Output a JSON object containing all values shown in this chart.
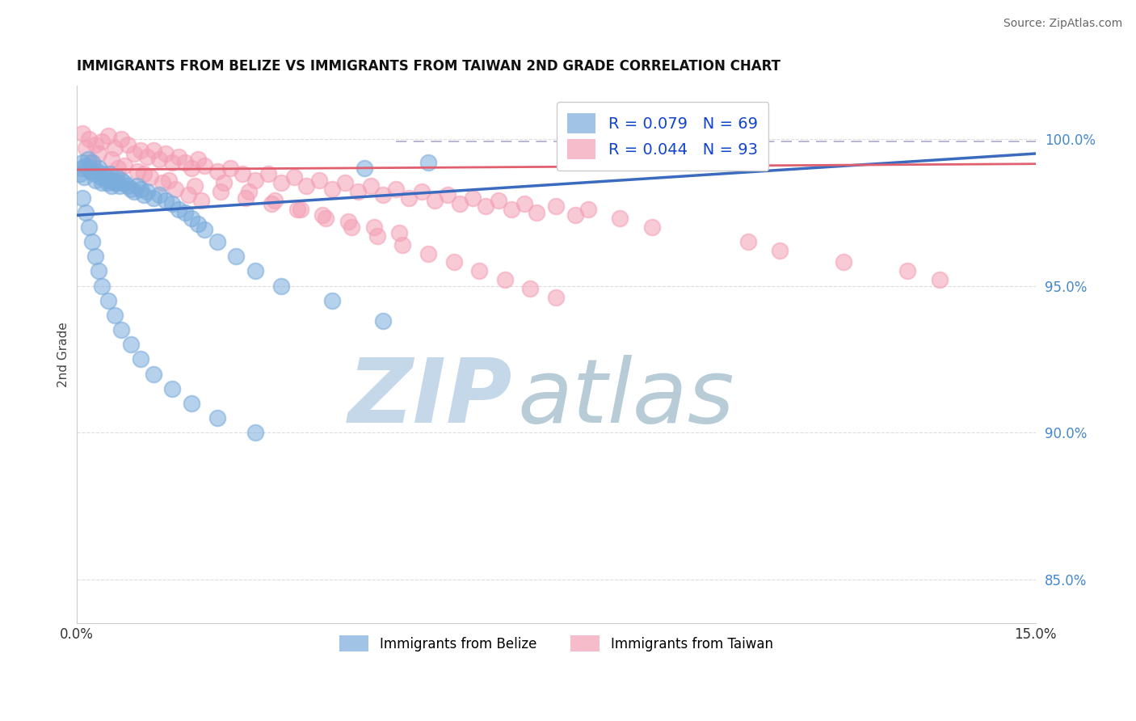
{
  "title": "IMMIGRANTS FROM BELIZE VS IMMIGRANTS FROM TAIWAN 2ND GRADE CORRELATION CHART",
  "source": "Source: ZipAtlas.com",
  "ylabel": "2nd Grade",
  "xlim": [
    0.0,
    15.0
  ],
  "ylim": [
    83.5,
    101.8
  ],
  "yticks": [
    85.0,
    90.0,
    95.0,
    100.0
  ],
  "ytick_labels": [
    "85.0%",
    "90.0%",
    "95.0%",
    "100.0%"
  ],
  "belize_color": "#7aacdc",
  "taiwan_color": "#f4a0b5",
  "belize_line_color": "#3a6bbf",
  "taiwan_line_color": "#e06070",
  "dashed_line_color": "#aaaacc",
  "watermark_zip_color": "#c5d8ea",
  "watermark_atlas_color": "#b8ccd8",
  "background_color": "#ffffff",
  "belize_N": 69,
  "taiwan_N": 93,
  "belize_R": "0.079",
  "taiwan_R": "0.044",
  "belize_line_y0": 97.4,
  "belize_line_y1": 99.5,
  "taiwan_line_y0": 98.95,
  "taiwan_line_y1": 99.15,
  "dashed_y": 99.9,
  "belize_x": [
    0.05,
    0.08,
    0.1,
    0.12,
    0.15,
    0.18,
    0.2,
    0.22,
    0.25,
    0.28,
    0.3,
    0.32,
    0.35,
    0.38,
    0.4,
    0.42,
    0.45,
    0.48,
    0.5,
    0.52,
    0.55,
    0.58,
    0.6,
    0.62,
    0.65,
    0.68,
    0.7,
    0.75,
    0.8,
    0.85,
    0.9,
    0.95,
    1.0,
    1.05,
    1.1,
    1.2,
    1.3,
    1.4,
    1.5,
    1.6,
    1.7,
    1.8,
    1.9,
    2.0,
    2.2,
    2.5,
    2.8,
    3.2,
    4.0,
    4.8,
    0.1,
    0.15,
    0.2,
    0.25,
    0.3,
    0.35,
    0.4,
    0.5,
    0.6,
    0.7,
    0.85,
    1.0,
    1.2,
    1.5,
    1.8,
    2.2,
    2.8,
    4.5,
    5.5
  ],
  "belize_y": [
    98.8,
    99.0,
    99.2,
    98.7,
    99.1,
    99.3,
    99.0,
    98.9,
    99.2,
    98.8,
    98.6,
    98.9,
    99.0,
    98.7,
    98.5,
    98.8,
    98.7,
    98.5,
    98.6,
    98.8,
    98.4,
    98.6,
    98.5,
    98.7,
    98.5,
    98.4,
    98.6,
    98.5,
    98.4,
    98.3,
    98.2,
    98.4,
    98.3,
    98.1,
    98.2,
    98.0,
    98.1,
    97.9,
    97.8,
    97.6,
    97.5,
    97.3,
    97.1,
    96.9,
    96.5,
    96.0,
    95.5,
    95.0,
    94.5,
    93.8,
    98.0,
    97.5,
    97.0,
    96.5,
    96.0,
    95.5,
    95.0,
    94.5,
    94.0,
    93.5,
    93.0,
    92.5,
    92.0,
    91.5,
    91.0,
    90.5,
    90.0,
    99.0,
    99.2
  ],
  "taiwan_x": [
    0.1,
    0.2,
    0.3,
    0.4,
    0.5,
    0.6,
    0.7,
    0.8,
    0.9,
    1.0,
    1.1,
    1.2,
    1.3,
    1.4,
    1.5,
    1.6,
    1.7,
    1.8,
    1.9,
    2.0,
    2.2,
    2.4,
    2.6,
    2.8,
    3.0,
    3.2,
    3.4,
    3.6,
    3.8,
    4.0,
    4.2,
    4.4,
    4.6,
    4.8,
    5.0,
    5.2,
    5.4,
    5.6,
    5.8,
    6.0,
    6.2,
    6.4,
    6.6,
    6.8,
    7.0,
    7.2,
    7.5,
    7.8,
    8.0,
    8.5,
    0.15,
    0.35,
    0.55,
    0.75,
    0.95,
    1.15,
    1.35,
    1.55,
    1.75,
    1.95,
    2.3,
    2.7,
    3.1,
    3.5,
    3.9,
    4.3,
    4.7,
    5.1,
    5.5,
    5.9,
    6.3,
    6.7,
    7.1,
    7.5,
    9.0,
    10.5,
    11.0,
    12.0,
    13.0,
    13.5,
    0.25,
    0.65,
    1.05,
    1.45,
    1.85,
    2.25,
    2.65,
    3.05,
    3.45,
    3.85,
    4.25,
    4.65,
    5.05
  ],
  "taiwan_y": [
    100.2,
    100.0,
    99.8,
    99.9,
    100.1,
    99.7,
    100.0,
    99.8,
    99.5,
    99.6,
    99.4,
    99.6,
    99.3,
    99.5,
    99.2,
    99.4,
    99.2,
    99.0,
    99.3,
    99.1,
    98.9,
    99.0,
    98.8,
    98.6,
    98.8,
    98.5,
    98.7,
    98.4,
    98.6,
    98.3,
    98.5,
    98.2,
    98.4,
    98.1,
    98.3,
    98.0,
    98.2,
    97.9,
    98.1,
    97.8,
    98.0,
    97.7,
    97.9,
    97.6,
    97.8,
    97.5,
    97.7,
    97.4,
    97.6,
    97.3,
    99.7,
    99.5,
    99.3,
    99.1,
    98.9,
    98.7,
    98.5,
    98.3,
    98.1,
    97.9,
    98.5,
    98.2,
    97.9,
    97.6,
    97.3,
    97.0,
    96.7,
    96.4,
    96.1,
    95.8,
    95.5,
    95.2,
    94.9,
    94.6,
    97.0,
    96.5,
    96.2,
    95.8,
    95.5,
    95.2,
    99.2,
    99.0,
    98.8,
    98.6,
    98.4,
    98.2,
    98.0,
    97.8,
    97.6,
    97.4,
    97.2,
    97.0,
    96.8
  ]
}
